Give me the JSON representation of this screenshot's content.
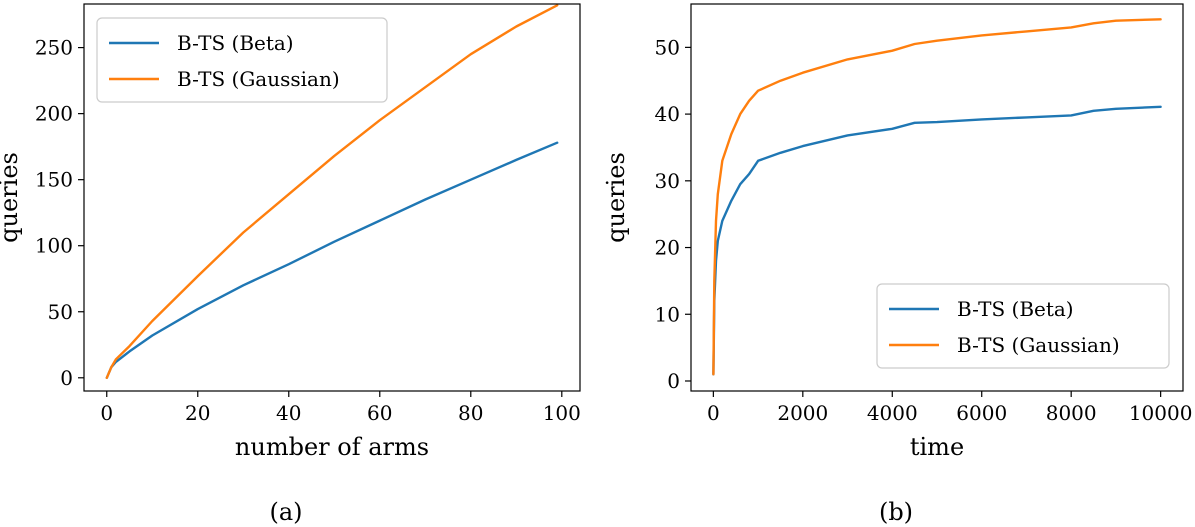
{
  "chart_data": [
    {
      "type": "line",
      "panel": "(a)",
      "xlabel": "number of arms",
      "ylabel": "queries",
      "xlim": [
        -5,
        104
      ],
      "ylim": [
        -10,
        283
      ],
      "xticks": [
        0,
        20,
        40,
        60,
        80,
        100
      ],
      "yticks": [
        0,
        50,
        100,
        150,
        200,
        250
      ],
      "legend_position": "top-left",
      "grid": false,
      "series": [
        {
          "name": "B-TS (Beta)",
          "color": "#1f77b4",
          "x": [
            0,
            1,
            2,
            5,
            10,
            20,
            30,
            40,
            50,
            60,
            70,
            80,
            90,
            99
          ],
          "y": [
            0,
            8,
            12,
            20,
            32,
            52,
            70,
            86,
            103,
            119,
            135,
            150,
            165,
            178
          ]
        },
        {
          "name": "B-TS (Gaussian)",
          "color": "#ff7f0e",
          "x": [
            0,
            1,
            2,
            5,
            10,
            20,
            30,
            40,
            50,
            60,
            70,
            80,
            90,
            99
          ],
          "y": [
            0,
            8,
            14,
            24,
            43,
            77,
            110,
            139,
            168,
            195,
            220,
            245,
            266,
            282
          ]
        }
      ]
    },
    {
      "type": "line",
      "panel": "(b)",
      "xlabel": "time",
      "ylabel": "queries",
      "xlim": [
        -500,
        10500
      ],
      "ylim": [
        -1.5,
        56.5
      ],
      "xticks": [
        0,
        2000,
        4000,
        6000,
        8000,
        10000
      ],
      "yticks": [
        0,
        10,
        20,
        30,
        40,
        50
      ],
      "legend_position": "bottom-right",
      "grid": false,
      "series": [
        {
          "name": "B-TS (Beta)",
          "color": "#1f77b4",
          "x": [
            0,
            20,
            60,
            100,
            200,
            400,
            600,
            800,
            1000,
            1500,
            2000,
            3000,
            4000,
            4500,
            5000,
            6000,
            7000,
            8000,
            8500,
            9000,
            10000
          ],
          "y": [
            1,
            12,
            18,
            21,
            24,
            27,
            29.5,
            31,
            33,
            34.2,
            35.2,
            36.8,
            37.8,
            38.7,
            38.8,
            39.2,
            39.5,
            39.8,
            40.5,
            40.8,
            41.1
          ]
        },
        {
          "name": "B-TS (Gaussian)",
          "color": "#ff7f0e",
          "x": [
            0,
            20,
            60,
            100,
            200,
            400,
            600,
            800,
            1000,
            1500,
            2000,
            3000,
            4000,
            4500,
            5000,
            6000,
            7000,
            8000,
            8500,
            9000,
            10000
          ],
          "y": [
            1,
            15,
            24,
            28,
            33,
            37,
            40,
            42,
            43.5,
            45,
            46.2,
            48.2,
            49.5,
            50.5,
            51,
            51.8,
            52.4,
            53,
            53.6,
            54,
            54.2
          ]
        }
      ]
    }
  ]
}
